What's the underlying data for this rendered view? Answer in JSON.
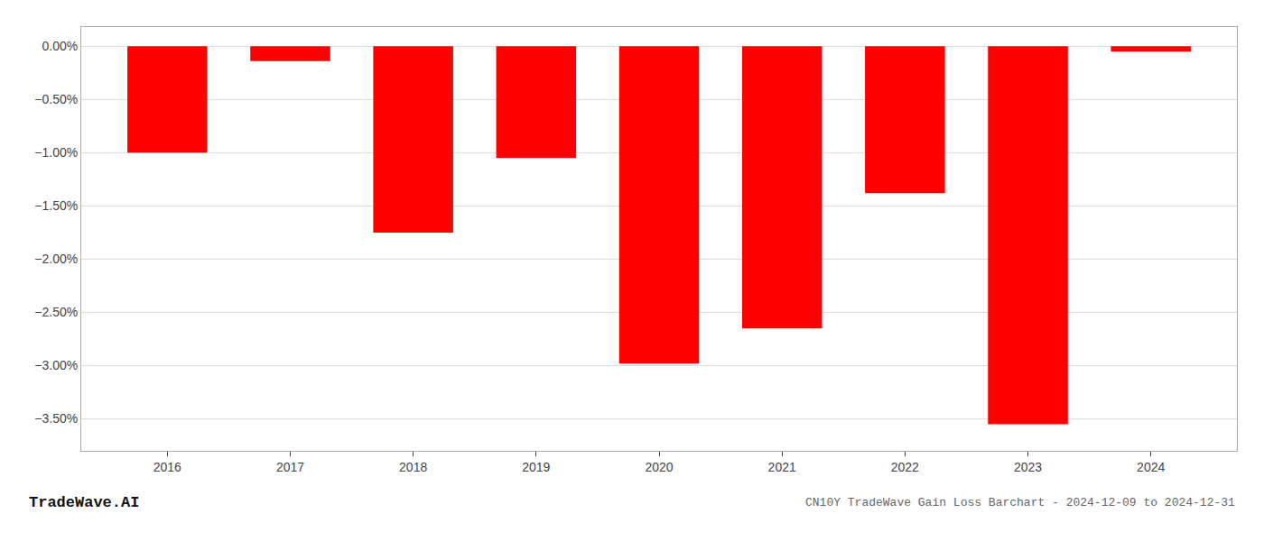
{
  "chart_data": {
    "type": "bar",
    "title": "CN10Y TradeWave Gain Loss Barchart - 2024-12-09 to 2024-12-31",
    "x": [
      2016,
      2017,
      2018,
      2019,
      2020,
      2021,
      2022,
      2023,
      2024
    ],
    "values": [
      -1.0,
      -0.14,
      -1.75,
      -1.05,
      -2.98,
      -2.65,
      -1.38,
      -3.55,
      -0.05
    ],
    "color": "#ff0000",
    "xlim": [
      2015.3,
      2024.7
    ],
    "xticks": [
      2016,
      2017,
      2018,
      2019,
      2020,
      2021,
      2022,
      2023,
      2024
    ],
    "ylim": [
      -3.8,
      0.18
    ],
    "yticks": [
      {
        "value": 0.0,
        "label": "0.00%"
      },
      {
        "value": -0.5,
        "label": "−0.50%"
      },
      {
        "value": -1.0,
        "label": "−1.00%"
      },
      {
        "value": -1.5,
        "label": "−1.50%"
      },
      {
        "value": -2.0,
        "label": "−2.00%"
      },
      {
        "value": -2.5,
        "label": "−2.50%"
      },
      {
        "value": -3.0,
        "label": "−3.00%"
      },
      {
        "value": -3.5,
        "label": "−3.50%"
      }
    ],
    "grid": true,
    "annotations": [
      "TradeWave.AI"
    ]
  }
}
